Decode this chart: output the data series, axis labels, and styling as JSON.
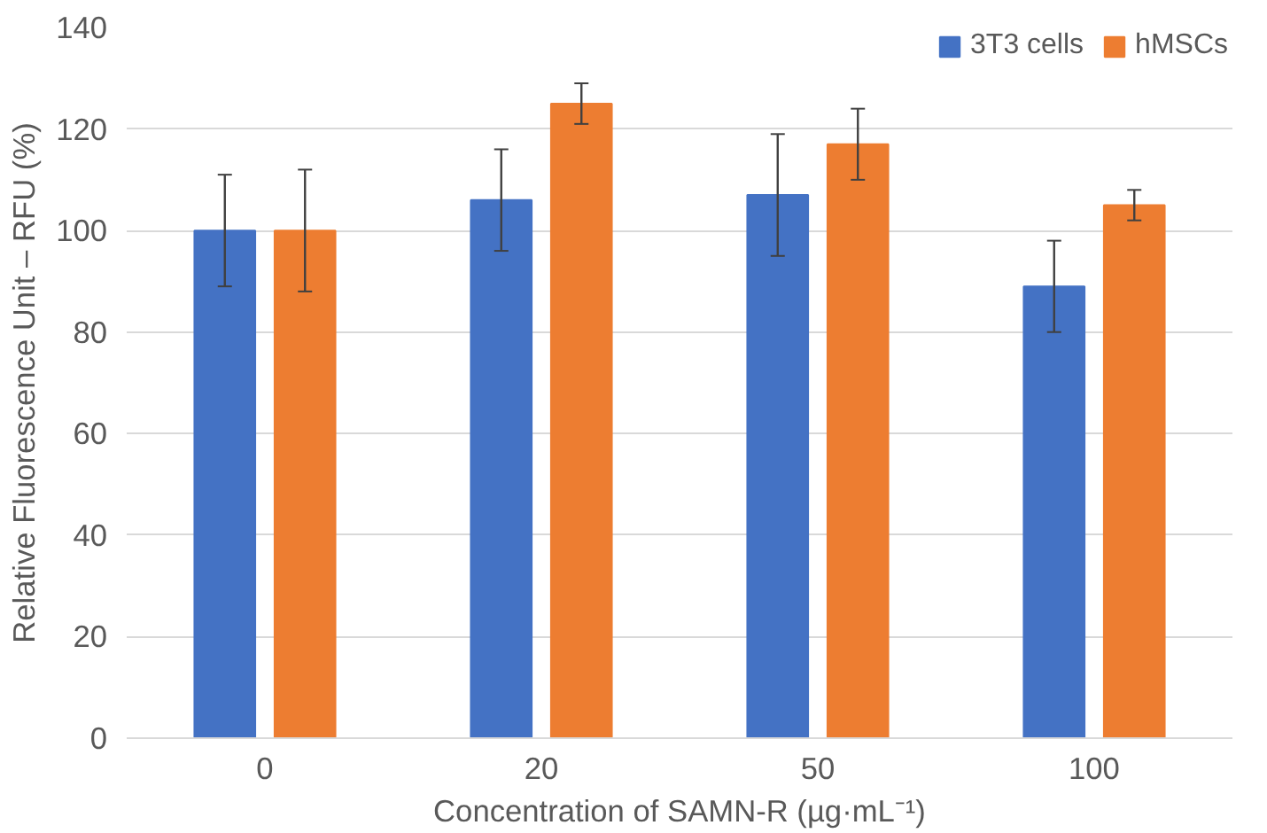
{
  "chart_data": {
    "type": "bar",
    "xlabel": "Concentration of SAMN-R (µg·mL⁻¹)",
    "ylabel": "Relative Fluorescence Unit – RFU (%)",
    "categories": [
      "0",
      "20",
      "50",
      "100"
    ],
    "series": [
      {
        "name": "3T3 cells",
        "color": "#4472c4",
        "values": [
          100,
          106,
          107,
          89
        ],
        "errors": [
          11,
          10,
          12,
          9
        ]
      },
      {
        "name": "hMSCs",
        "color": "#ed7d31",
        "values": [
          100,
          125,
          117,
          105
        ],
        "errors": [
          12,
          4,
          7,
          3
        ]
      }
    ],
    "ylim": [
      0,
      140
    ],
    "yticks": [
      0,
      20,
      40,
      60,
      80,
      100,
      120,
      140
    ],
    "grid": "y",
    "legend": "top right"
  }
}
